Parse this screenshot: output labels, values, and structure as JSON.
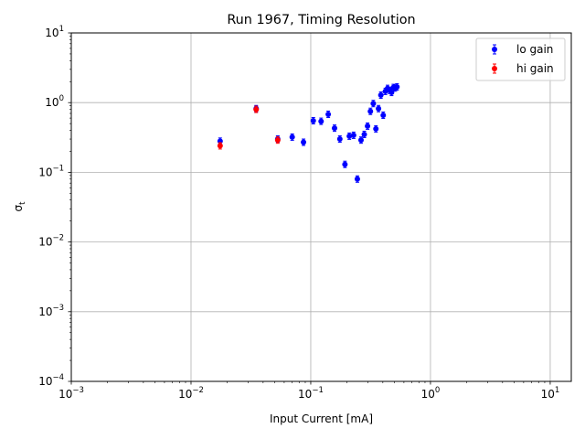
{
  "chart_data": {
    "type": "scatter",
    "title": "Run 1967, Timing Resolution",
    "xlabel": "Input Current [mA]",
    "ylabel_base": "σ",
    "ylabel_sub": "t",
    "xscale": "log",
    "yscale": "log",
    "xlim": [
      0.001,
      15
    ],
    "ylim": [
      0.0001,
      10
    ],
    "grid": true,
    "legend_position": "top-right",
    "x_ticks": [
      {
        "value": 0.001,
        "base": "10",
        "exp": "−3"
      },
      {
        "value": 0.01,
        "base": "10",
        "exp": "−2"
      },
      {
        "value": 0.1,
        "base": "10",
        "exp": "−1"
      },
      {
        "value": 1,
        "base": "10",
        "exp": "0"
      },
      {
        "value": 10,
        "base": "10",
        "exp": "1"
      }
    ],
    "y_ticks": [
      {
        "value": 0.0001,
        "base": "10",
        "exp": "−4"
      },
      {
        "value": 0.001,
        "base": "10",
        "exp": "−3"
      },
      {
        "value": 0.01,
        "base": "10",
        "exp": "−2"
      },
      {
        "value": 0.1,
        "base": "10",
        "exp": "−1"
      },
      {
        "value": 1,
        "base": "10",
        "exp": "0"
      },
      {
        "value": 10,
        "base": "10",
        "exp": "1"
      }
    ],
    "series": [
      {
        "name": "lo gain",
        "color": "#0000ff",
        "points": [
          {
            "x": 0.0175,
            "y": 0.28
          },
          {
            "x": 0.035,
            "y": 0.82
          },
          {
            "x": 0.053,
            "y": 0.3
          },
          {
            "x": 0.07,
            "y": 0.32
          },
          {
            "x": 0.087,
            "y": 0.27
          },
          {
            "x": 0.105,
            "y": 0.55
          },
          {
            "x": 0.122,
            "y": 0.54
          },
          {
            "x": 0.14,
            "y": 0.68
          },
          {
            "x": 0.158,
            "y": 0.43
          },
          {
            "x": 0.175,
            "y": 0.3
          },
          {
            "x": 0.193,
            "y": 0.13
          },
          {
            "x": 0.21,
            "y": 0.33
          },
          {
            "x": 0.228,
            "y": 0.34
          },
          {
            "x": 0.245,
            "y": 0.08
          },
          {
            "x": 0.263,
            "y": 0.29
          },
          {
            "x": 0.28,
            "y": 0.35
          },
          {
            "x": 0.298,
            "y": 0.46
          },
          {
            "x": 0.315,
            "y": 0.75
          },
          {
            "x": 0.333,
            "y": 0.97
          },
          {
            "x": 0.35,
            "y": 0.42
          },
          {
            "x": 0.368,
            "y": 0.82
          },
          {
            "x": 0.385,
            "y": 1.28
          },
          {
            "x": 0.403,
            "y": 0.66
          },
          {
            "x": 0.42,
            "y": 1.45
          },
          {
            "x": 0.438,
            "y": 1.6
          },
          {
            "x": 0.455,
            "y": 1.5
          },
          {
            "x": 0.473,
            "y": 1.4
          },
          {
            "x": 0.49,
            "y": 1.65
          },
          {
            "x": 0.508,
            "y": 1.62
          },
          {
            "x": 0.525,
            "y": 1.68
          }
        ]
      },
      {
        "name": "hi gain",
        "color": "#ff0000",
        "points": [
          {
            "x": 0.0175,
            "y": 0.24
          },
          {
            "x": 0.035,
            "y": 0.8
          },
          {
            "x": 0.053,
            "y": 0.29
          }
        ]
      }
    ]
  }
}
